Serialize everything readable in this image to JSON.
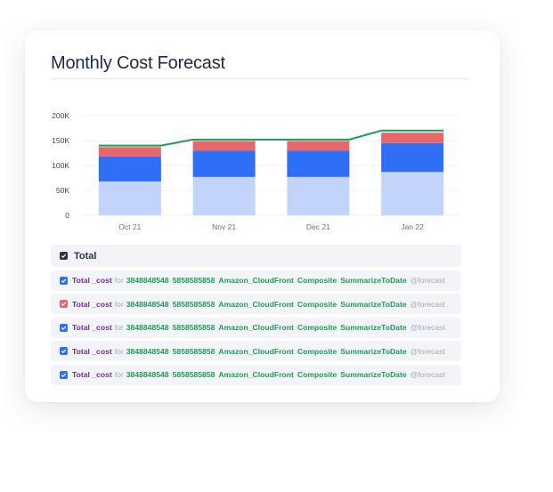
{
  "card": {
    "title": "Monthly Cost Forecast"
  },
  "chart_data": {
    "type": "bar",
    "stacked": true,
    "categories": [
      "Oct 21",
      "Nov 21",
      "Dec 21",
      "Jan 22"
    ],
    "y_ticks": [
      "0",
      "50K",
      "100K",
      "150K",
      "200K"
    ],
    "ylim": [
      0,
      200000
    ],
    "grid": true,
    "series": [
      {
        "values": [
          68000,
          77000,
          77000,
          87000
        ],
        "color": "#c2d4fa"
      },
      {
        "values": [
          50000,
          53000,
          53000,
          58000
        ],
        "color": "#2f6ff5"
      },
      {
        "values": [
          19000,
          19000,
          19000,
          21000
        ],
        "color": "#e8686a"
      }
    ],
    "line": {
      "values": [
        140000,
        152000,
        152000,
        170000
      ],
      "color": "#1f9a55"
    }
  },
  "legend": {
    "total_label": "Total",
    "rows": [
      {
        "check_color": "#2f6ff5",
        "metric": "Total _cost",
        "for": "for",
        "tags": [
          "3848848548",
          "5858585858",
          "Amazon_CloudFront",
          "Composite",
          "SummarizeToDate"
        ],
        "forecast": "@forecast"
      },
      {
        "check_color": "#e8686a",
        "metric": "Total _cost",
        "for": "for",
        "tags": [
          "3848848548",
          "5858585858",
          "Amazon_CloudFront",
          "Composite",
          "SummarizeToDate"
        ],
        "forecast": "@forecast"
      },
      {
        "check_color": "#2f6ff5",
        "metric": "Total _cost",
        "for": "for",
        "tags": [
          "3848848548",
          "5858585858",
          "Amazon_CloudFront",
          "Composite",
          "SummarizeToDate"
        ],
        "forecast": "@forecast"
      },
      {
        "check_color": "#2f6ff5",
        "metric": "Total _cost",
        "for": "for",
        "tags": [
          "3848848548",
          "5858585858",
          "Amazon_CloudFront",
          "Composite",
          "SummarizeToDate"
        ],
        "forecast": "@forecast"
      },
      {
        "check_color": "#2f6ff5",
        "metric": "Total _cost",
        "for": "for",
        "tags": [
          "3848848548",
          "5858585858",
          "Amazon_CloudFront",
          "Composite",
          "SummarizeToDate"
        ],
        "forecast": "@forecast"
      }
    ]
  }
}
